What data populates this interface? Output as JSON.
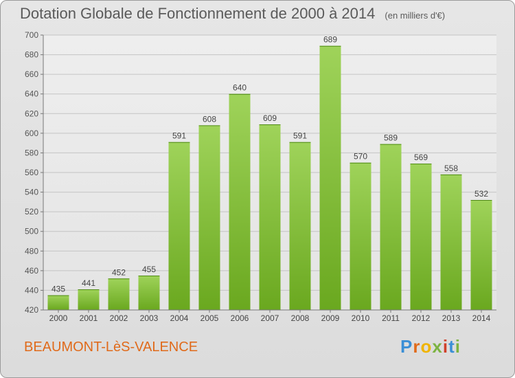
{
  "header": {
    "title": "Dotation Globale de Fonctionnement de 2000 à 2014",
    "subtitle": "(en milliers d'€)"
  },
  "footer": {
    "commune": "BEAUMONT-LèS-VALENCE",
    "logo_text": "Proxiti",
    "logo_colors": [
      "#3b8fd6",
      "#e06a1a",
      "#f0b400",
      "#7cb342",
      "#d0402a",
      "#3b8fd6",
      "#7cb342"
    ]
  },
  "chart_data": {
    "type": "bar",
    "categories": [
      "2000",
      "2001",
      "2002",
      "2003",
      "2004",
      "2005",
      "2006",
      "2007",
      "2008",
      "2009",
      "2010",
      "2011",
      "2012",
      "2013",
      "2014"
    ],
    "values": [
      435,
      441,
      452,
      455,
      591,
      608,
      640,
      609,
      591,
      689,
      570,
      589,
      569,
      558,
      532
    ],
    "title": "Dotation Globale de Fonctionnement de 2000 à 2014",
    "subtitle": "(en milliers d'€)",
    "xlabel": "",
    "ylabel": "",
    "ylim": [
      420,
      700
    ],
    "yticks": [
      420,
      440,
      460,
      480,
      500,
      520,
      540,
      560,
      580,
      600,
      620,
      640,
      660,
      680,
      700
    ],
    "grid": true,
    "bar_color": "#8cc63f"
  }
}
